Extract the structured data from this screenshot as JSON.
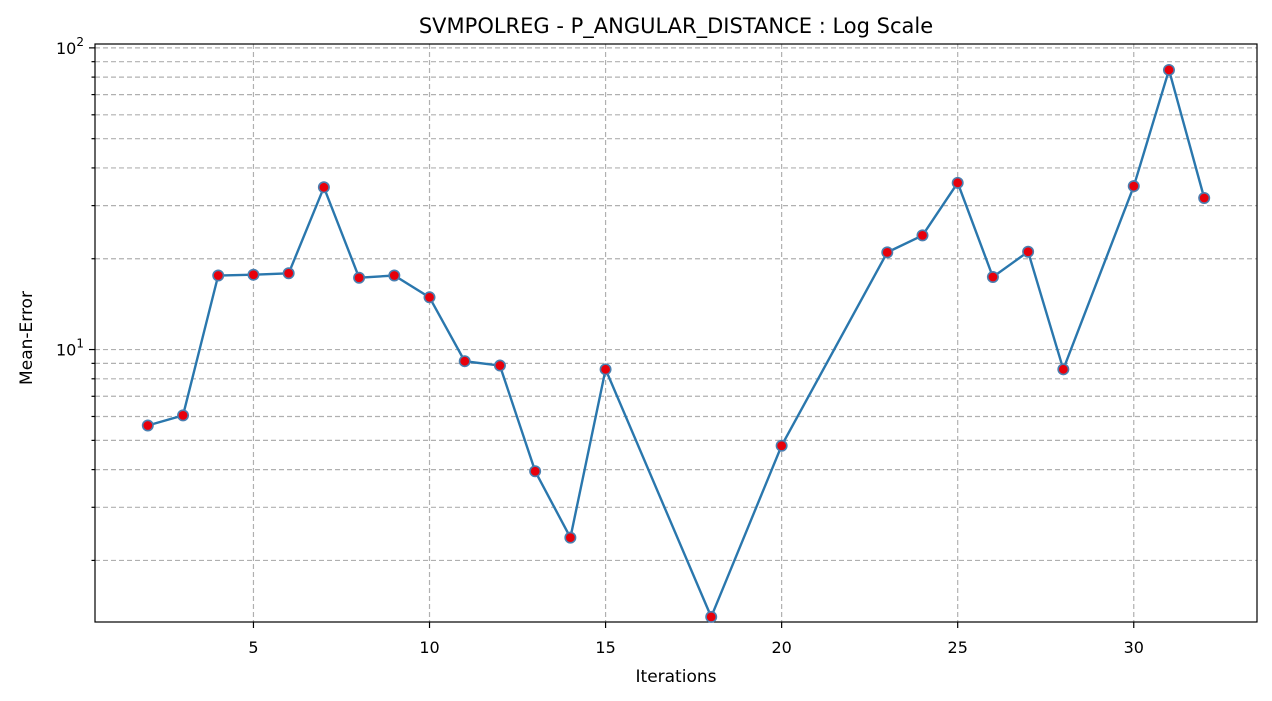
{
  "chart_data": {
    "type": "line",
    "title": "SVMPOLREG - P_ANGULAR_DISTANCE : Log Scale",
    "xlabel": "Iterations",
    "ylabel": "Mean-Error",
    "yscale": "log",
    "xlim": [
      0.5,
      33.5
    ],
    "ylim": [
      1.25,
      103
    ],
    "xticks": [
      5,
      10,
      15,
      20,
      25,
      30
    ],
    "yticks": [
      {
        "value": 10,
        "base": "10",
        "exp": "1"
      },
      {
        "value": 100,
        "base": "10",
        "exp": "2"
      }
    ],
    "grid": true,
    "series": [
      {
        "x": [
          2,
          3,
          4,
          5,
          6,
          7,
          8,
          9,
          10,
          11,
          12,
          13,
          14,
          15,
          18,
          20,
          23,
          24,
          25,
          26,
          27,
          28,
          30,
          31,
          32
        ],
        "values": [
          5.6,
          6.05,
          17.6,
          17.7,
          17.9,
          34.5,
          17.3,
          17.6,
          14.9,
          9.15,
          8.85,
          3.95,
          2.38,
          8.6,
          1.3,
          4.8,
          21.0,
          23.9,
          35.7,
          17.4,
          21.1,
          8.6,
          34.8,
          84.5,
          31.8
        ],
        "color": "#2a77ad",
        "marker_color": "#e8000b"
      }
    ]
  }
}
